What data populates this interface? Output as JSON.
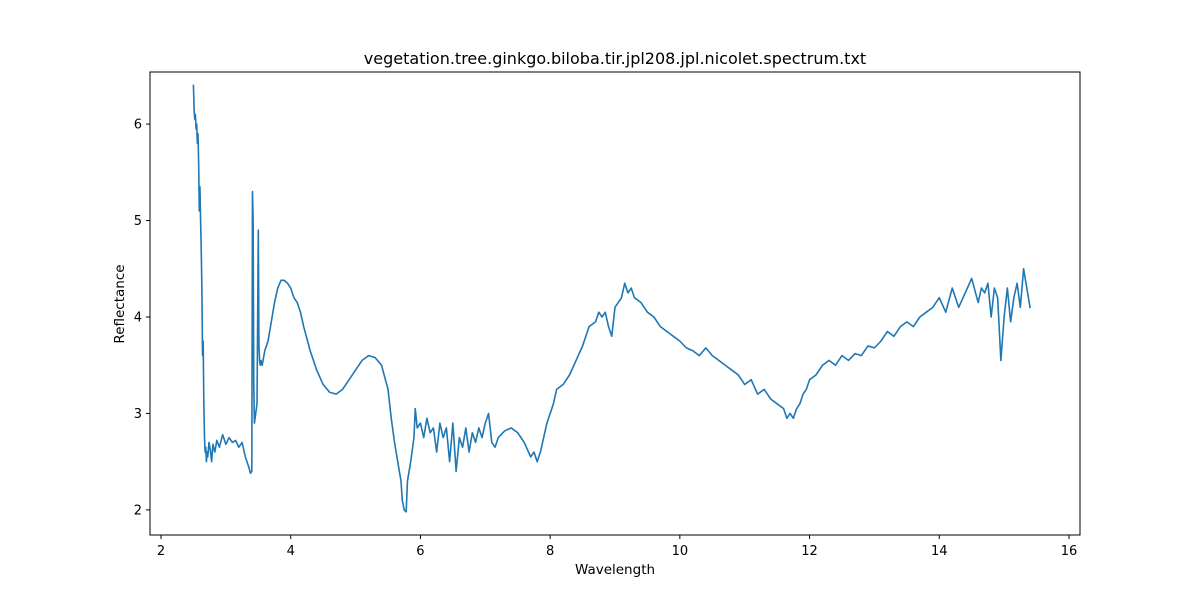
{
  "chart_data": {
    "type": "line",
    "title": "vegetation.tree.ginkgo.biloba.tir.jpl208.jpl.nicolet.spectrum.txt",
    "xlabel": "Wavelength",
    "ylabel": "Reflectance",
    "xlim": [
      1.83,
      16.17
    ],
    "ylim": [
      1.74,
      6.54
    ],
    "xticks": [
      2,
      4,
      6,
      8,
      10,
      12,
      14,
      16
    ],
    "yticks": [
      2,
      3,
      4,
      5,
      6
    ],
    "xtick_labels": [
      "2",
      "4",
      "6",
      "8",
      "10",
      "12",
      "14",
      "16"
    ],
    "ytick_labels": [
      "2",
      "3",
      "4",
      "5",
      "6"
    ],
    "grid": false,
    "legend": null,
    "series": [
      {
        "color": "#1f77b4",
        "x": [
          2.5,
          2.51,
          2.52,
          2.53,
          2.54,
          2.55,
          2.56,
          2.57,
          2.58,
          2.59,
          2.6,
          2.61,
          2.62,
          2.63,
          2.64,
          2.65,
          2.66,
          2.67,
          2.68,
          2.69,
          2.7,
          2.71,
          2.72,
          2.74,
          2.76,
          2.78,
          2.8,
          2.83,
          2.86,
          2.9,
          2.95,
          3.0,
          3.05,
          3.1,
          3.15,
          3.2,
          3.25,
          3.3,
          3.35,
          3.38,
          3.4,
          3.41,
          3.42,
          3.43,
          3.44,
          3.46,
          3.48,
          3.5,
          3.51,
          3.52,
          3.53,
          3.54,
          3.56,
          3.6,
          3.65,
          3.7,
          3.75,
          3.8,
          3.85,
          3.9,
          3.95,
          4.0,
          4.05,
          4.1,
          4.15,
          4.2,
          4.3,
          4.4,
          4.5,
          4.6,
          4.7,
          4.8,
          4.9,
          5.0,
          5.1,
          5.2,
          5.3,
          5.4,
          5.5,
          5.55,
          5.6,
          5.65,
          5.7,
          5.72,
          5.75,
          5.78,
          5.8,
          5.85,
          5.9,
          5.92,
          5.95,
          6.0,
          6.05,
          6.1,
          6.15,
          6.2,
          6.25,
          6.3,
          6.35,
          6.4,
          6.45,
          6.5,
          6.55,
          6.6,
          6.65,
          6.7,
          6.75,
          6.8,
          6.85,
          6.9,
          6.95,
          7.0,
          7.05,
          7.1,
          7.15,
          7.2,
          7.3,
          7.4,
          7.5,
          7.6,
          7.7,
          7.75,
          7.8,
          7.85,
          7.9,
          7.95,
          8.0,
          8.05,
          8.1,
          8.2,
          8.3,
          8.4,
          8.5,
          8.6,
          8.7,
          8.75,
          8.8,
          8.85,
          8.9,
          8.95,
          9.0,
          9.05,
          9.1,
          9.15,
          9.2,
          9.25,
          9.3,
          9.4,
          9.5,
          9.6,
          9.7,
          9.8,
          9.9,
          10.0,
          10.1,
          10.2,
          10.3,
          10.4,
          10.5,
          10.6,
          10.7,
          10.8,
          10.9,
          11.0,
          11.1,
          11.2,
          11.3,
          11.4,
          11.5,
          11.6,
          11.65,
          11.7,
          11.75,
          11.8,
          11.85,
          11.9,
          11.95,
          12.0,
          12.1,
          12.2,
          12.3,
          12.4,
          12.5,
          12.6,
          12.7,
          12.8,
          12.9,
          13.0,
          13.1,
          13.2,
          13.3,
          13.4,
          13.5,
          13.6,
          13.7,
          13.8,
          13.9,
          14.0,
          14.1,
          14.2,
          14.3,
          14.4,
          14.5,
          14.6,
          14.65,
          14.7,
          14.75,
          14.8,
          14.85,
          14.9,
          14.95,
          15.0,
          15.05,
          15.1,
          15.15,
          15.2,
          15.25,
          15.3,
          15.35,
          15.4
        ],
        "y": [
          6.4,
          6.15,
          6.05,
          6.1,
          5.95,
          6.0,
          5.8,
          5.9,
          5.6,
          5.1,
          5.35,
          5.0,
          4.7,
          4.3,
          3.6,
          3.75,
          3.1,
          2.75,
          2.6,
          2.65,
          2.5,
          2.6,
          2.55,
          2.7,
          2.62,
          2.5,
          2.68,
          2.6,
          2.72,
          2.65,
          2.78,
          2.68,
          2.75,
          2.7,
          2.72,
          2.65,
          2.7,
          2.55,
          2.45,
          2.38,
          2.4,
          5.3,
          5.0,
          3.3,
          2.9,
          3.0,
          3.1,
          4.9,
          3.7,
          3.55,
          3.5,
          3.55,
          3.5,
          3.65,
          3.75,
          3.95,
          4.15,
          4.3,
          4.38,
          4.38,
          4.35,
          4.3,
          4.2,
          4.15,
          4.05,
          3.9,
          3.65,
          3.45,
          3.3,
          3.22,
          3.2,
          3.25,
          3.35,
          3.45,
          3.55,
          3.6,
          3.58,
          3.5,
          3.25,
          2.95,
          2.7,
          2.5,
          2.3,
          2.1,
          2.0,
          1.98,
          2.3,
          2.5,
          2.75,
          3.05,
          2.85,
          2.9,
          2.75,
          2.95,
          2.8,
          2.85,
          2.6,
          2.9,
          2.75,
          2.85,
          2.5,
          2.9,
          2.4,
          2.75,
          2.65,
          2.85,
          2.6,
          2.8,
          2.7,
          2.85,
          2.75,
          2.9,
          3.0,
          2.7,
          2.65,
          2.75,
          2.82,
          2.85,
          2.8,
          2.7,
          2.55,
          2.6,
          2.5,
          2.6,
          2.75,
          2.9,
          3.0,
          3.1,
          3.25,
          3.3,
          3.4,
          3.55,
          3.7,
          3.9,
          3.95,
          4.05,
          4.0,
          4.05,
          3.9,
          3.8,
          4.1,
          4.15,
          4.2,
          4.35,
          4.25,
          4.3,
          4.2,
          4.15,
          4.05,
          4.0,
          3.9,
          3.85,
          3.8,
          3.75,
          3.68,
          3.65,
          3.6,
          3.68,
          3.6,
          3.55,
          3.5,
          3.45,
          3.4,
          3.3,
          3.35,
          3.2,
          3.25,
          3.15,
          3.1,
          3.05,
          2.95,
          3.0,
          2.95,
          3.05,
          3.1,
          3.2,
          3.25,
          3.35,
          3.4,
          3.5,
          3.55,
          3.5,
          3.6,
          3.55,
          3.62,
          3.6,
          3.7,
          3.68,
          3.75,
          3.85,
          3.8,
          3.9,
          3.95,
          3.9,
          4.0,
          4.05,
          4.1,
          4.2,
          4.05,
          4.3,
          4.1,
          4.25,
          4.4,
          4.15,
          4.3,
          4.25,
          4.35,
          4.0,
          4.3,
          4.2,
          3.55,
          4.0,
          4.3,
          3.95,
          4.2,
          4.35,
          4.1,
          4.5,
          4.3,
          4.1
        ]
      }
    ]
  }
}
